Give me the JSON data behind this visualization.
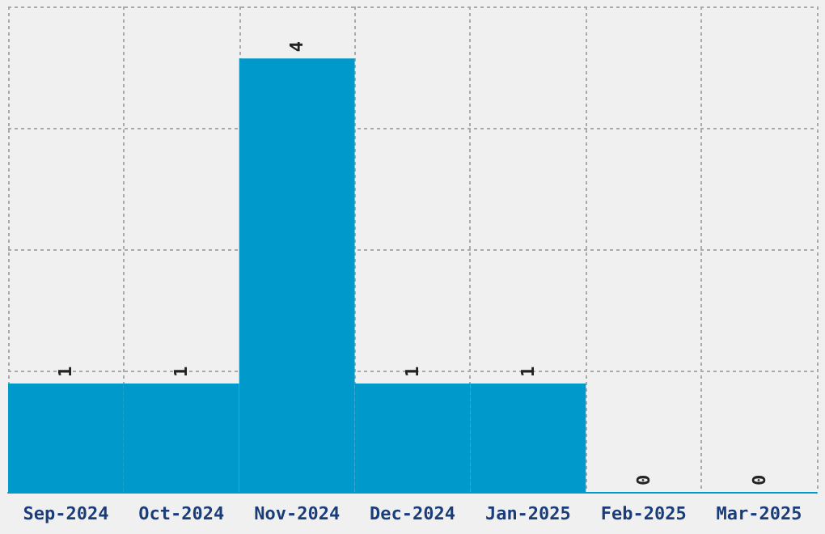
{
  "chart_data": {
    "type": "bar",
    "categories": [
      "Sep-2024",
      "Oct-2024",
      "Nov-2024",
      "Dec-2024",
      "Jan-2025",
      "Feb-2025",
      "Mar-2025"
    ],
    "values": [
      1,
      1,
      4,
      1,
      1,
      0,
      0
    ],
    "color": "#0099cc",
    "data_labels": true,
    "grid": true
  }
}
